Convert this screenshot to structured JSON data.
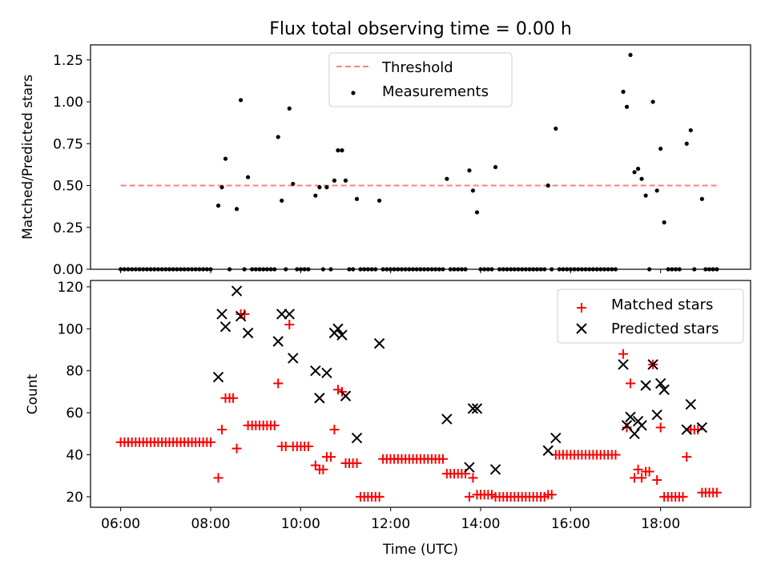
{
  "colors": {
    "threshold": "#ff7f7f",
    "measurement": "#000000",
    "matched": "#ff0000",
    "predicted": "#000000"
  },
  "chart_data": [
    {
      "type": "scatter",
      "title": "Flux total observing time = 0.00 h",
      "xlabel": "",
      "ylabel": "Matched/Predicted stars",
      "xlim": [
        5.33,
        20.0
      ],
      "ylim": [
        0,
        1.34
      ],
      "yticks": [
        0,
        0.25,
        0.5,
        0.75,
        1.0,
        1.25
      ],
      "ytick_labels": [
        "0.00",
        "0.25",
        "0.50",
        "0.75",
        "1.00",
        "1.25"
      ],
      "legend_placement": "top-center",
      "threshold": {
        "name": "Threshold",
        "x": [
          6.0,
          19.3
        ],
        "y": 0.5
      },
      "series": [
        {
          "name": "Measurements",
          "points": [
            [
              8.17,
              0.38
            ],
            [
              8.25,
              0.49
            ],
            [
              8.33,
              0.66
            ],
            [
              8.58,
              0.36
            ],
            [
              8.67,
              1.01
            ],
            [
              8.83,
              0.55
            ],
            [
              9.5,
              0.79
            ],
            [
              9.58,
              0.41
            ],
            [
              9.75,
              0.96
            ],
            [
              9.83,
              0.51
            ],
            [
              10.33,
              0.44
            ],
            [
              10.42,
              0.49
            ],
            [
              10.58,
              0.49
            ],
            [
              10.75,
              0.53
            ],
            [
              10.83,
              0.71
            ],
            [
              10.92,
              0.71
            ],
            [
              11.0,
              0.53
            ],
            [
              11.25,
              0.42
            ],
            [
              11.75,
              0.41
            ],
            [
              13.25,
              0.54
            ],
            [
              13.75,
              0.59
            ],
            [
              13.83,
              0.47
            ],
            [
              13.92,
              0.34
            ],
            [
              14.33,
              0.61
            ],
            [
              15.5,
              0.5
            ],
            [
              15.67,
              0.84
            ],
            [
              17.17,
              1.06
            ],
            [
              17.25,
              0.97
            ],
            [
              17.33,
              1.28
            ],
            [
              17.42,
              0.58
            ],
            [
              17.5,
              0.6
            ],
            [
              17.58,
              0.54
            ],
            [
              17.67,
              0.44
            ],
            [
              17.83,
              1.0
            ],
            [
              17.92,
              0.47
            ],
            [
              18.0,
              0.72
            ],
            [
              18.08,
              0.28
            ],
            [
              18.58,
              0.75
            ],
            [
              18.67,
              0.83
            ],
            [
              18.92,
              0.42
            ]
          ],
          "zero_ranges": [
            [
              6.0,
              8.08
            ],
            [
              8.42,
              8.5
            ],
            [
              8.75,
              8.75
            ],
            [
              8.92,
              9.42
            ],
            [
              9.67,
              9.67
            ],
            [
              9.92,
              10.25
            ],
            [
              10.5,
              10.5
            ],
            [
              10.67,
              10.67
            ],
            [
              11.08,
              11.17
            ],
            [
              11.33,
              11.67
            ],
            [
              11.83,
              13.17
            ],
            [
              13.33,
              13.67
            ],
            [
              14.0,
              14.25
            ],
            [
              14.42,
              15.42
            ],
            [
              15.58,
              15.58
            ],
            [
              15.75,
              17.08
            ],
            [
              17.75,
              17.75
            ],
            [
              18.17,
              18.5
            ],
            [
              18.75,
              18.83
            ],
            [
              19.0,
              19.25
            ]
          ]
        }
      ]
    },
    {
      "type": "scatter",
      "title": "",
      "xlabel": "Time (UTC)",
      "ylabel": "Count",
      "xlim": [
        5.33,
        20.0
      ],
      "ylim": [
        15,
        123
      ],
      "yticks": [
        20,
        40,
        60,
        80,
        100,
        120
      ],
      "ytick_labels": [
        "20",
        "40",
        "60",
        "80",
        "100",
        "120"
      ],
      "xticks": [
        6,
        8,
        10,
        12,
        14,
        16,
        18
      ],
      "xtick_labels": [
        "06:00",
        "08:00",
        "10:00",
        "12:00",
        "14:00",
        "16:00",
        "18:00"
      ],
      "legend_placement": "top-right",
      "series": [
        {
          "name": "Matched stars",
          "marker": "+",
          "runs": [
            [
              6.0,
              8.08,
              46
            ],
            [
              8.92,
              9.42,
              54
            ],
            [
              9.92,
              10.25,
              44
            ],
            [
              11.08,
              11.17,
              36
            ],
            [
              11.33,
              11.67,
              20
            ],
            [
              11.83,
              13.17,
              38
            ],
            [
              13.33,
              13.67,
              31
            ],
            [
              14.0,
              14.25,
              21
            ],
            [
              14.42,
              15.42,
              20
            ],
            [
              15.75,
              17.08,
              40
            ],
            [
              18.08,
              18.5,
              20
            ],
            [
              19.0,
              19.25,
              22
            ]
          ],
          "points": [
            [
              8.17,
              29
            ],
            [
              8.25,
              52
            ],
            [
              8.33,
              67
            ],
            [
              8.42,
              67
            ],
            [
              8.5,
              67
            ],
            [
              8.58,
              43
            ],
            [
              8.67,
              107
            ],
            [
              8.75,
              107
            ],
            [
              8.83,
              54
            ],
            [
              9.5,
              74
            ],
            [
              9.58,
              44
            ],
            [
              9.67,
              44
            ],
            [
              9.75,
              102
            ],
            [
              9.83,
              44
            ],
            [
              10.33,
              35
            ],
            [
              10.42,
              33
            ],
            [
              10.5,
              33
            ],
            [
              10.58,
              39
            ],
            [
              10.67,
              39
            ],
            [
              10.75,
              52
            ],
            [
              10.83,
              71
            ],
            [
              10.92,
              70
            ],
            [
              11.0,
              36
            ],
            [
              11.25,
              36
            ],
            [
              11.75,
              20
            ],
            [
              13.25,
              31
            ],
            [
              13.75,
              20
            ],
            [
              13.83,
              29
            ],
            [
              13.92,
              21
            ],
            [
              14.33,
              20
            ],
            [
              15.5,
              21
            ],
            [
              15.58,
              21
            ],
            [
              15.67,
              40
            ],
            [
              17.17,
              88
            ],
            [
              17.25,
              53
            ],
            [
              17.33,
              74
            ],
            [
              17.42,
              29
            ],
            [
              17.5,
              33
            ],
            [
              17.58,
              29
            ],
            [
              17.67,
              32
            ],
            [
              17.75,
              32
            ],
            [
              17.83,
              83
            ],
            [
              17.92,
              28
            ],
            [
              18.0,
              53
            ],
            [
              18.58,
              39
            ],
            [
              18.67,
              52
            ],
            [
              18.75,
              52
            ],
            [
              18.83,
              52
            ],
            [
              18.92,
              22
            ]
          ]
        },
        {
          "name": "Predicted stars",
          "marker": "x",
          "points": [
            [
              8.17,
              77
            ],
            [
              8.25,
              107
            ],
            [
              8.33,
              101
            ],
            [
              8.58,
              118
            ],
            [
              8.67,
              106
            ],
            [
              8.83,
              98
            ],
            [
              9.5,
              94
            ],
            [
              9.58,
              107
            ],
            [
              9.75,
              107
            ],
            [
              9.83,
              86
            ],
            [
              10.33,
              80
            ],
            [
              10.42,
              67
            ],
            [
              10.58,
              79
            ],
            [
              10.75,
              98
            ],
            [
              10.83,
              100
            ],
            [
              10.92,
              97
            ],
            [
              11.0,
              68
            ],
            [
              11.25,
              48
            ],
            [
              11.75,
              93
            ],
            [
              13.25,
              57
            ],
            [
              13.75,
              34
            ],
            [
              13.83,
              62
            ],
            [
              13.92,
              62
            ],
            [
              14.33,
              33
            ],
            [
              15.5,
              42
            ],
            [
              15.67,
              48
            ],
            [
              17.17,
              83
            ],
            [
              17.25,
              54
            ],
            [
              17.33,
              58
            ],
            [
              17.42,
              50
            ],
            [
              17.5,
              56
            ],
            [
              17.58,
              54
            ],
            [
              17.67,
              73
            ],
            [
              17.83,
              83
            ],
            [
              17.92,
              59
            ],
            [
              18.0,
              74
            ],
            [
              18.08,
              71
            ],
            [
              18.58,
              52
            ],
            [
              18.67,
              64
            ],
            [
              18.92,
              53
            ]
          ]
        }
      ]
    }
  ]
}
